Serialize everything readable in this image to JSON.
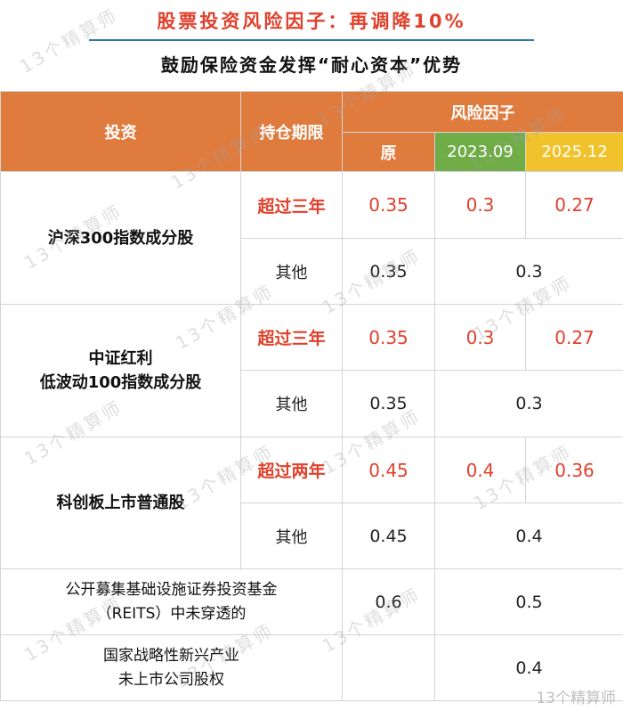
{
  "title": "股票投资风险因子：再调降10%",
  "subtitle": "鼓励保险资金发挥“耐心资本”优势",
  "table": {
    "header": {
      "investment": "投资",
      "holding_period": "持仓期限",
      "risk_factor": "风险因子",
      "original": "原",
      "y2023": "2023.09",
      "y2025": "2025.12"
    },
    "rows": [
      {
        "name": "沪深300指数成分股",
        "long_label": "超过三年",
        "long_values": [
          "0.35",
          "0.3",
          "0.27"
        ],
        "other_label": "其他",
        "other_values": [
          "0.35",
          "0.3"
        ]
      },
      {
        "name_line1": "中证红利",
        "name_line2": "低波动100指数成分股",
        "long_label": "超过三年",
        "long_values": [
          "0.35",
          "0.3",
          "0.27"
        ],
        "other_label": "其他",
        "other_values": [
          "0.35",
          "0.3"
        ]
      },
      {
        "name": "科创板上市普通股",
        "long_label": "超过两年",
        "long_values": [
          "0.45",
          "0.4",
          "0.36"
        ],
        "other_label": "其他",
        "other_values": [
          "0.45",
          "0.4"
        ]
      },
      {
        "name_line1": "公开募集基础设施证券投资基金",
        "name_line2": "（REITS）中未穿透的",
        "values": [
          "0.6",
          "0.5"
        ]
      },
      {
        "name_line1": "国家战略性新兴产业",
        "name_line2": "未上市公司股权",
        "values": [
          "",
          "0.4"
        ]
      }
    ]
  },
  "watermark": "13个精算师",
  "corner_watermark": "13个精算师",
  "colors": {
    "header": "#e07b3e",
    "y2023": "#70ad47",
    "y2025": "#f2c22c",
    "highlight": "#e0412c"
  }
}
